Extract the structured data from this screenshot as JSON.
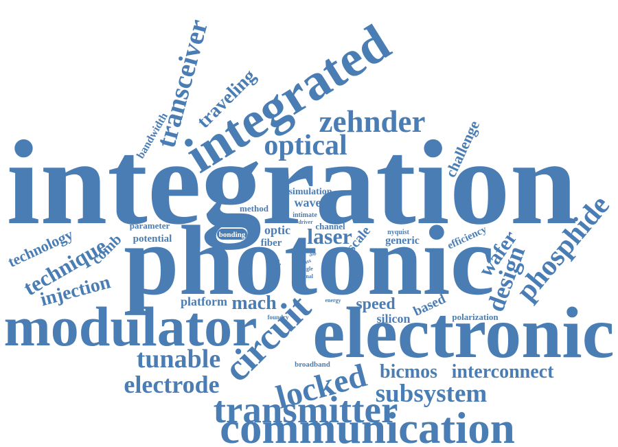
{
  "words": [
    "integration",
    "photonic",
    "electronic",
    "modulator",
    "integrated",
    "communication",
    "transmitter",
    "subsystem",
    "locked",
    "bicmos",
    "interconnect",
    "electrode",
    "tunable",
    "circuit",
    "zehnder",
    "optical",
    "transceiver",
    "traveling",
    "bandwidth",
    "challenge",
    "phosphide",
    "design",
    "wafer",
    "efficiency",
    "technology",
    "technique",
    "comb",
    "injection",
    "parameter",
    "potential",
    "platform",
    "mach",
    "speed",
    "silicon",
    "based",
    "polarization",
    "laser",
    "optic",
    "fiber",
    "channel",
    "scale",
    "generic",
    "nyquist",
    "simulation",
    "wave",
    "method",
    "intimate",
    "driver",
    "bonding",
    "concept",
    "class",
    "single",
    "signal",
    "energy",
    "foundry",
    "broadband",
    "ship"
  ]
}
